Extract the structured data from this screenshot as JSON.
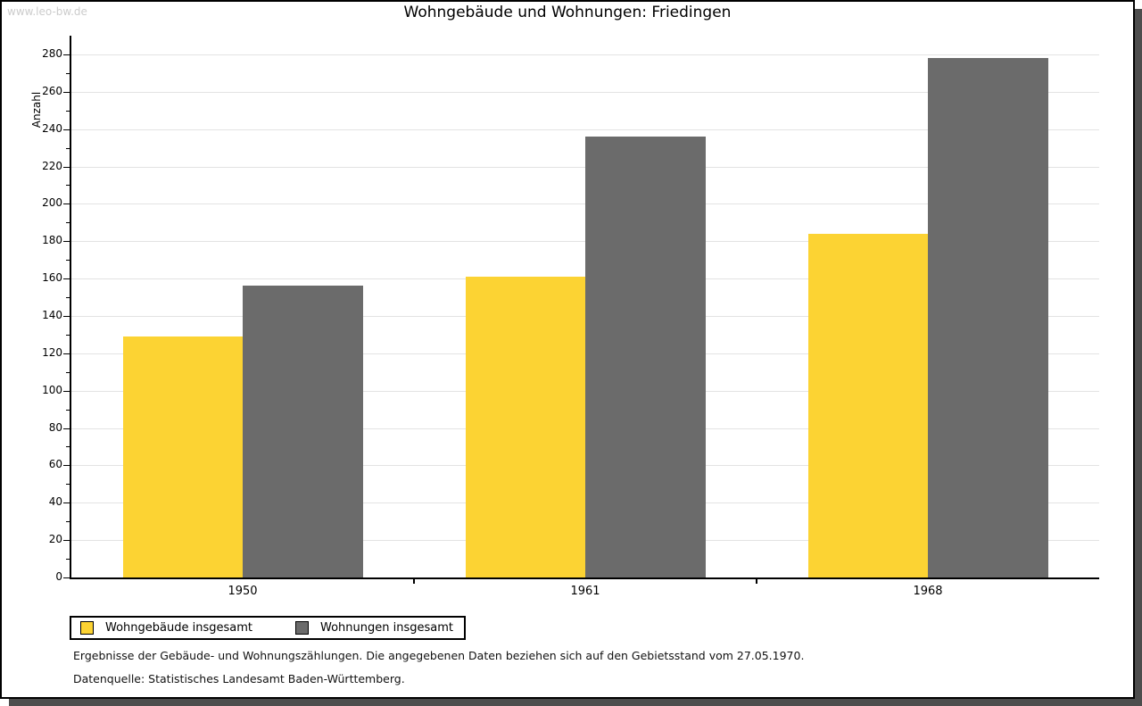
{
  "watermark": "www.leo-bw.de",
  "title": "Wohngebäude und Wohnungen: Friedingen",
  "chart_data": {
    "type": "bar",
    "title": "Wohngebäude und Wohnungen: Friedingen",
    "ylabel": "Anzahl",
    "xlabel": "",
    "categories": [
      "1950",
      "1961",
      "1968"
    ],
    "series": [
      {
        "name": "Wohngebäude insgesamt",
        "color": "#fcd333",
        "values": [
          129,
          161,
          184
        ]
      },
      {
        "name": "Wohnungen insgesamt",
        "color": "#6b6b6b",
        "values": [
          156,
          236,
          278
        ]
      }
    ],
    "ylim": [
      0,
      280
    ],
    "yticks": [
      0,
      20,
      40,
      60,
      80,
      100,
      120,
      140,
      160,
      180,
      200,
      220,
      240,
      260,
      280
    ],
    "minor_tick_step": 10,
    "grid": true,
    "legend_position": "bottom-left"
  },
  "footnotes": {
    "line1": "Ergebnisse der Gebäude- und Wohnungszählungen. Die angegebenen Daten beziehen sich auf den Gebietsstand vom 27.05.1970.",
    "line2": "Datenquelle: Statistisches Landesamt Baden-Württemberg."
  },
  "colors": {
    "bar_yellow": "#fcd333",
    "bar_gray": "#6b6b6b",
    "gridline": "#e3e3e3",
    "watermark": "#cccccc",
    "frame_shadow": "#4d4d4d"
  }
}
